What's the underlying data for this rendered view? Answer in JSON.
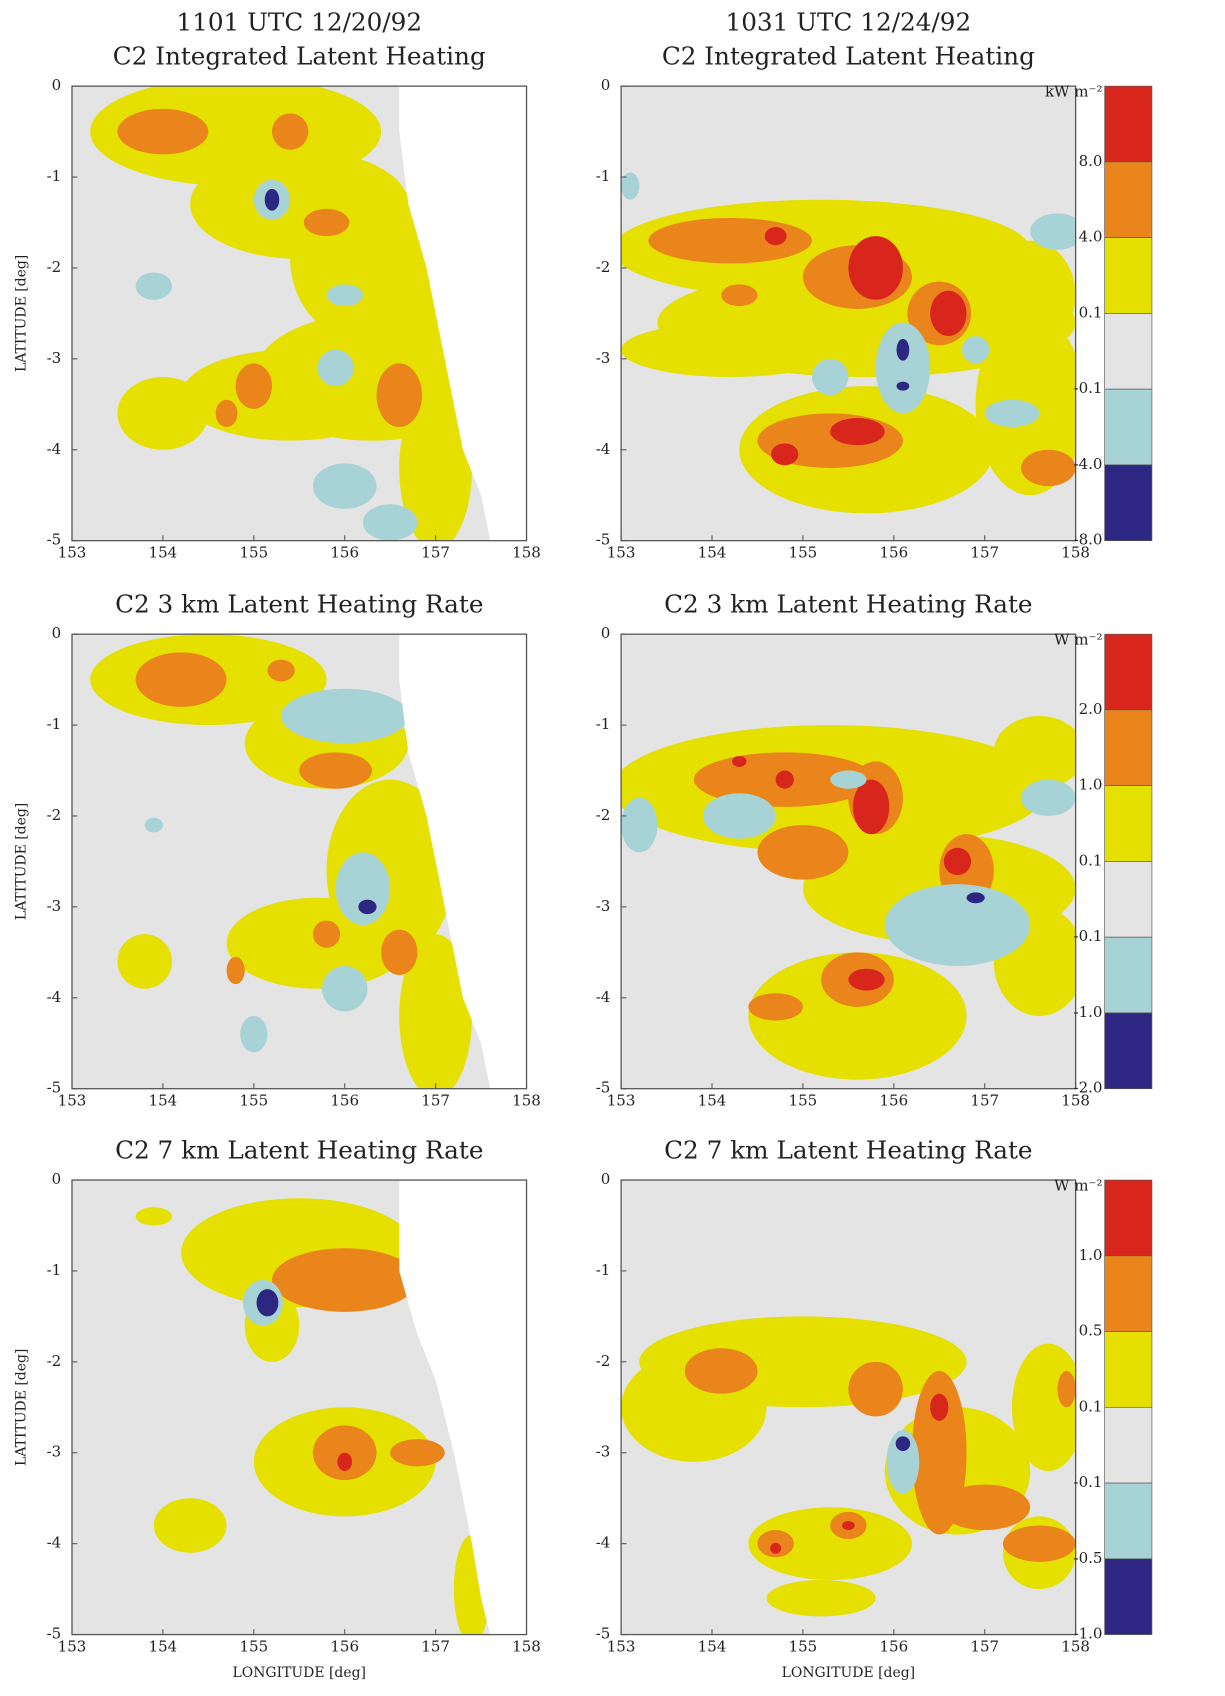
{
  "chart_data": [
    {
      "type": "contour",
      "subtitle": "1101 UTC 12/20/92",
      "title": "C2 Integrated Latent Heating",
      "y_label": "LATITUDE [deg]",
      "xlim": [
        153,
        158
      ],
      "ylim": [
        -5,
        0
      ],
      "xticks": [
        153,
        154,
        155,
        156,
        157,
        158
      ],
      "yticks": [
        0,
        -1,
        -2,
        -3,
        -4,
        -5
      ]
    },
    {
      "type": "contour",
      "subtitle": "1031 UTC 12/24/92",
      "title": "C2 Integrated Latent Heating",
      "xlim": [
        153,
        158
      ],
      "ylim": [
        -5,
        0
      ],
      "xticks": [
        153,
        154,
        155,
        156,
        157,
        158
      ],
      "yticks": [
        0,
        -1,
        -2,
        -3,
        -4,
        -5
      ],
      "colorbar": {
        "unit": "kW m⁻²",
        "levels": [
          {
            "value": 8,
            "label": "8.0"
          },
          {
            "value": 4,
            "label": "4.0"
          },
          0.1,
          -0.1,
          {
            "value": -4,
            "label": "-4.0"
          },
          {
            "value": -8,
            "label": "-8.0"
          }
        ],
        "colors": [
          "#d9261c",
          "#e9851b",
          "#e5e000",
          "#e4e4e4",
          "#a8d3d6",
          "#2d2682"
        ]
      }
    },
    {
      "type": "contour",
      "title": "C2 3 km Latent Heating Rate",
      "y_label": "LATITUDE [deg]",
      "xlim": [
        153,
        158
      ],
      "ylim": [
        -5,
        0
      ],
      "xticks": [
        153,
        154,
        155,
        156,
        157,
        158
      ],
      "yticks": [
        0,
        -1,
        -2,
        -3,
        -4,
        -5
      ]
    },
    {
      "type": "contour",
      "title": "C2 3 km Latent Heating Rate",
      "xlim": [
        153,
        158
      ],
      "ylim": [
        -5,
        0
      ],
      "xticks": [
        153,
        154,
        155,
        156,
        157,
        158
      ],
      "yticks": [
        0,
        -1,
        -2,
        -3,
        -4,
        -5
      ],
      "colorbar": {
        "unit": "W m⁻²",
        "levels": [
          {
            "value": 2,
            "label": "2.0"
          },
          {
            "value": 1,
            "label": "1.0"
          },
          0.1,
          -0.1,
          {
            "value": -1,
            "label": "-1.0"
          },
          {
            "value": -2,
            "label": "-2.0"
          }
        ],
        "colors": [
          "#d9261c",
          "#e9851b",
          "#e5e000",
          "#e4e4e4",
          "#a8d3d6",
          "#2d2682"
        ]
      }
    },
    {
      "type": "contour",
      "title": "C2 7 km Latent Heating Rate",
      "y_label": "LATITUDE [deg]",
      "x_label": "LONGITUDE [deg]",
      "xlim": [
        153,
        158
      ],
      "ylim": [
        -5,
        0
      ],
      "xticks": [
        153,
        154,
        155,
        156,
        157,
        158
      ],
      "yticks": [
        0,
        -1,
        -2,
        -3,
        -4,
        -5
      ]
    },
    {
      "type": "contour",
      "title": "C2 7 km Latent Heating Rate",
      "x_label": "LONGITUDE [deg]",
      "xlim": [
        153,
        158
      ],
      "ylim": [
        -5,
        0
      ],
      "xticks": [
        153,
        154,
        155,
        156,
        157,
        158
      ],
      "yticks": [
        0,
        -1,
        -2,
        -3,
        -4,
        -5
      ],
      "colorbar": {
        "unit": "W m⁻²",
        "levels": [
          {
            "value": 1,
            "label": "1.0"
          },
          0.5,
          0.1,
          -0.1,
          -0.5,
          {
            "value": -1,
            "label": "-1.0"
          }
        ],
        "colors": [
          "#d9261c",
          "#e9851b",
          "#e5e000",
          "#e4e4e4",
          "#a8d3d6",
          "#2d2682"
        ]
      }
    }
  ]
}
